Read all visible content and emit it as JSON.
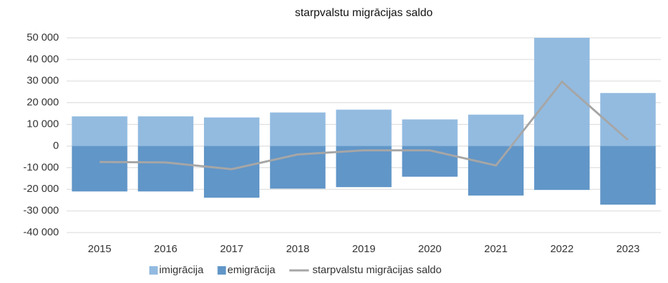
{
  "chart_data": {
    "type": "bar",
    "title": "starpvalstu migrācijas saldo",
    "categories": [
      "2015",
      "2016",
      "2017",
      "2018",
      "2019",
      "2020",
      "2021",
      "2022",
      "2023"
    ],
    "series": [
      {
        "name": "imigrācija",
        "color": "#93bbe0",
        "values": [
          13700,
          13700,
          13200,
          15500,
          16800,
          12300,
          14500,
          50000,
          24500
        ]
      },
      {
        "name": "emigrācija",
        "color": "#6196c8",
        "values": [
          -21000,
          -21000,
          -23900,
          -19700,
          -19000,
          -14200,
          -22900,
          -20300,
          -27100
        ]
      },
      {
        "name": "starpvalstu migrācijas saldo",
        "color": "#a6a6a6",
        "type": "line",
        "values": [
          -7400,
          -7600,
          -10700,
          -3900,
          -2000,
          -2000,
          -9000,
          29700,
          2800
        ]
      }
    ],
    "ylim": [
      -40000,
      50000
    ],
    "yticks": [
      {
        "value": -40000,
        "label": "-40 000"
      },
      {
        "value": -30000,
        "label": "-30 000"
      },
      {
        "value": -20000,
        "label": "-20 000"
      },
      {
        "value": -10000,
        "label": "-10 000"
      },
      0,
      {
        "value": 10000,
        "label": "10 000"
      },
      {
        "value": 20000,
        "label": "20 000"
      },
      {
        "value": 30000,
        "label": "30 000"
      },
      {
        "value": 40000,
        "label": "40 000"
      },
      {
        "value": 50000,
        "label": "50 000"
      }
    ],
    "grid": true,
    "legend": "bottom"
  }
}
